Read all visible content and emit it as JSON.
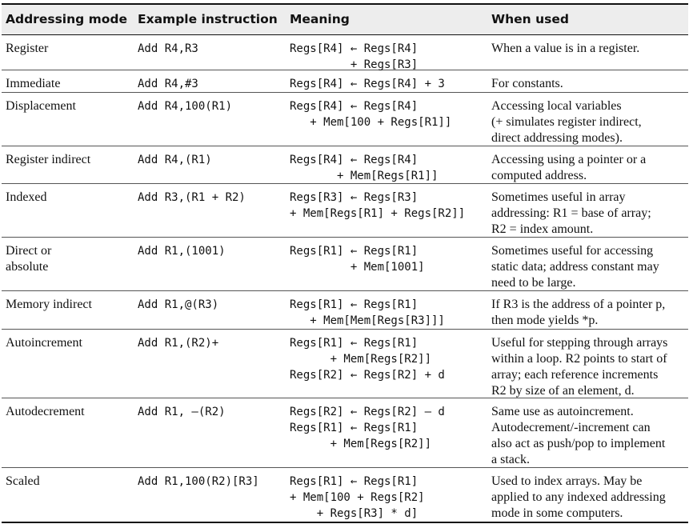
{
  "headers": [
    "Addressing mode",
    "Example instruction",
    "Meaning",
    "When used"
  ],
  "rows": [
    {
      "mode": "Register",
      "example": "Add R4,R3",
      "meaning": "Regs[R4] ← Regs[R4]\n         + Regs[R3]",
      "when": "When a value is in a register."
    },
    {
      "mode": "Immediate",
      "example": "Add R4,#3",
      "meaning": "Regs[R4] ← Regs[R4] + 3",
      "when": "For constants."
    },
    {
      "mode": "Displacement",
      "example": "Add R4,100(R1)",
      "meaning": "Regs[R4] ← Regs[R4]\n   + Mem[100 + Regs[R1]]",
      "when": "Accessing local variables\n(+ simulates register indirect,\ndirect addressing modes)."
    },
    {
      "mode": "Register indirect",
      "example": "Add R4,(R1)",
      "meaning": "Regs[R4] ← Regs[R4]\n       + Mem[Regs[R1]]",
      "when": "Accessing using a pointer or a\ncomputed address."
    },
    {
      "mode": "Indexed",
      "example": "Add R3,(R1 + R2)",
      "meaning": "Regs[R3] ← Regs[R3]\n+ Mem[Regs[R1] + Regs[R2]]",
      "when": "Sometimes useful in array\naddressing: R1 = base of array;\nR2 = index amount."
    },
    {
      "mode": "Direct or\nabsolute",
      "example": "Add R1,(1001)",
      "meaning": "Regs[R1] ← Regs[R1]\n         + Mem[1001]",
      "when": "Sometimes useful for accessing\nstatic data; address constant may\nneed to be large."
    },
    {
      "mode": "Memory indirect",
      "example": "Add R1,@(R3)",
      "meaning": "Regs[R1] ← Regs[R1]\n   + Mem[Mem[Regs[R3]]]",
      "when": "If R3 is the address of a pointer p,\nthen mode yields *p."
    },
    {
      "mode": "Autoincrement",
      "example": "Add R1,(R2)+",
      "meaning": "Regs[R1] ← Regs[R1]\n      + Mem[Regs[R2]]\nRegs[R2] ← Regs[R2] + d",
      "when": "Useful for stepping through arrays\nwithin a loop. R2 points to start of\narray; each reference increments\nR2 by size of an element, d."
    },
    {
      "mode": "Autodecrement",
      "example": "Add R1, –(R2)",
      "meaning": "Regs[R2] ← Regs[R2] – d\nRegs[R1] ← Regs[R1]\n      + Mem[Regs[R2]]",
      "when": "Same use as autoincrement.\nAutodecrement/-increment can\nalso act as push/pop to implement\na stack."
    },
    {
      "mode": "Scaled",
      "example": "Add R1,100(R2)[R3]",
      "meaning": "Regs[R1] ← Regs[R1]\n+ Mem[100 + Regs[R2]\n    + Regs[R3] * d]",
      "when": "Used to index arrays. May be\napplied to any indexed addressing\nmode in some computers."
    }
  ]
}
